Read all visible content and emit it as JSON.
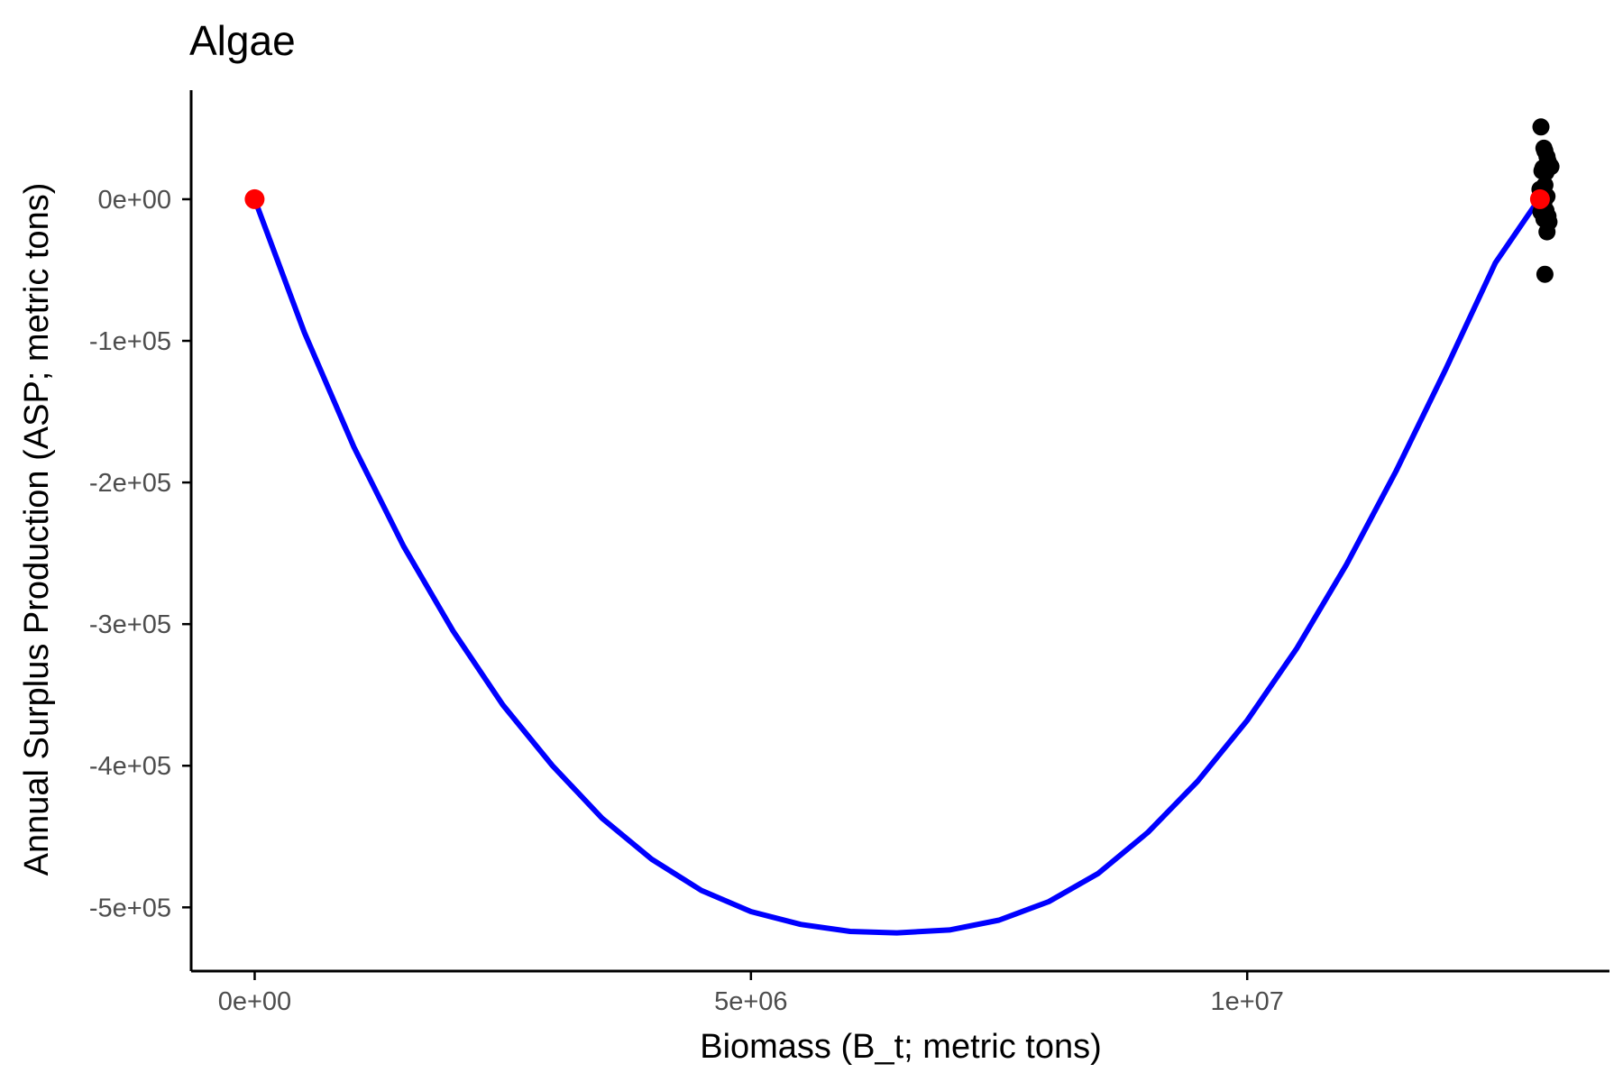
{
  "chart_data": {
    "type": "scatter",
    "title": "Algae",
    "xlabel": "Biomass (B_t; metric tons)",
    "ylabel": "Annual Surplus Production (ASP; metric tons)",
    "xlim": [
      -640000,
      13650000
    ],
    "ylim": [
      -545000,
      77000
    ],
    "x_ticks": [
      {
        "value": 0,
        "label": "0e+00"
      },
      {
        "value": 5000000,
        "label": "5e+06"
      },
      {
        "value": 10000000,
        "label": "1e+07"
      }
    ],
    "y_ticks": [
      {
        "value": 0,
        "label": "0e+00"
      },
      {
        "value": -100000,
        "label": "-1e+05"
      },
      {
        "value": -200000,
        "label": "-2e+05"
      },
      {
        "value": -300000,
        "label": "-3e+05"
      },
      {
        "value": -400000,
        "label": "-4e+05"
      },
      {
        "value": -500000,
        "label": "-5e+05"
      }
    ],
    "grid": false,
    "legend": "none",
    "series": [
      {
        "type": "line",
        "color": "#0000ff",
        "x": [
          0,
          500000,
          1000000,
          1500000,
          2000000,
          2500000,
          3000000,
          3500000,
          4000000,
          4500000,
          5000000,
          5500000,
          6000000,
          6470000,
          7000000,
          7500000,
          8000000,
          8500000,
          9000000,
          9500000,
          10000000,
          10500000,
          11000000,
          11500000,
          12000000,
          12500000,
          12940000
        ],
        "y": [
          0,
          -94000,
          -175000,
          -245000,
          -305000,
          -357000,
          -400000,
          -437000,
          -466000,
          -488000,
          -503000,
          -512000,
          -517000,
          -518000,
          -516000,
          -509000,
          -496000,
          -476000,
          -447000,
          -411000,
          -368000,
          -317000,
          -258000,
          -192000,
          -120000,
          -45000,
          0
        ]
      },
      {
        "type": "scatter",
        "color": "#000000",
        "x": [
          12960000,
          12990000,
          13000000,
          13020000,
          13030000,
          13050000,
          12980000,
          12970000,
          13010000,
          13060000,
          12950000,
          12980000,
          13000000,
          13020000,
          12990000,
          12970000,
          13010000,
          13030000,
          13040000,
          12960000,
          12990000,
          13020000,
          13000000,
          12970000,
          12980000
        ],
        "y": [
          51000,
          36000,
          34000,
          30000,
          27000,
          24000,
          22000,
          20000,
          19000,
          23000,
          7000,
          5000,
          10000,
          2000,
          -2000,
          -5000,
          -8000,
          -12000,
          -16000,
          -9000,
          -14000,
          -23000,
          -53000,
          1000,
          -3000
        ]
      },
      {
        "type": "scatter",
        "color": "#ff0000",
        "x": [
          0,
          12950000
        ],
        "y": [
          0,
          0
        ]
      }
    ]
  }
}
